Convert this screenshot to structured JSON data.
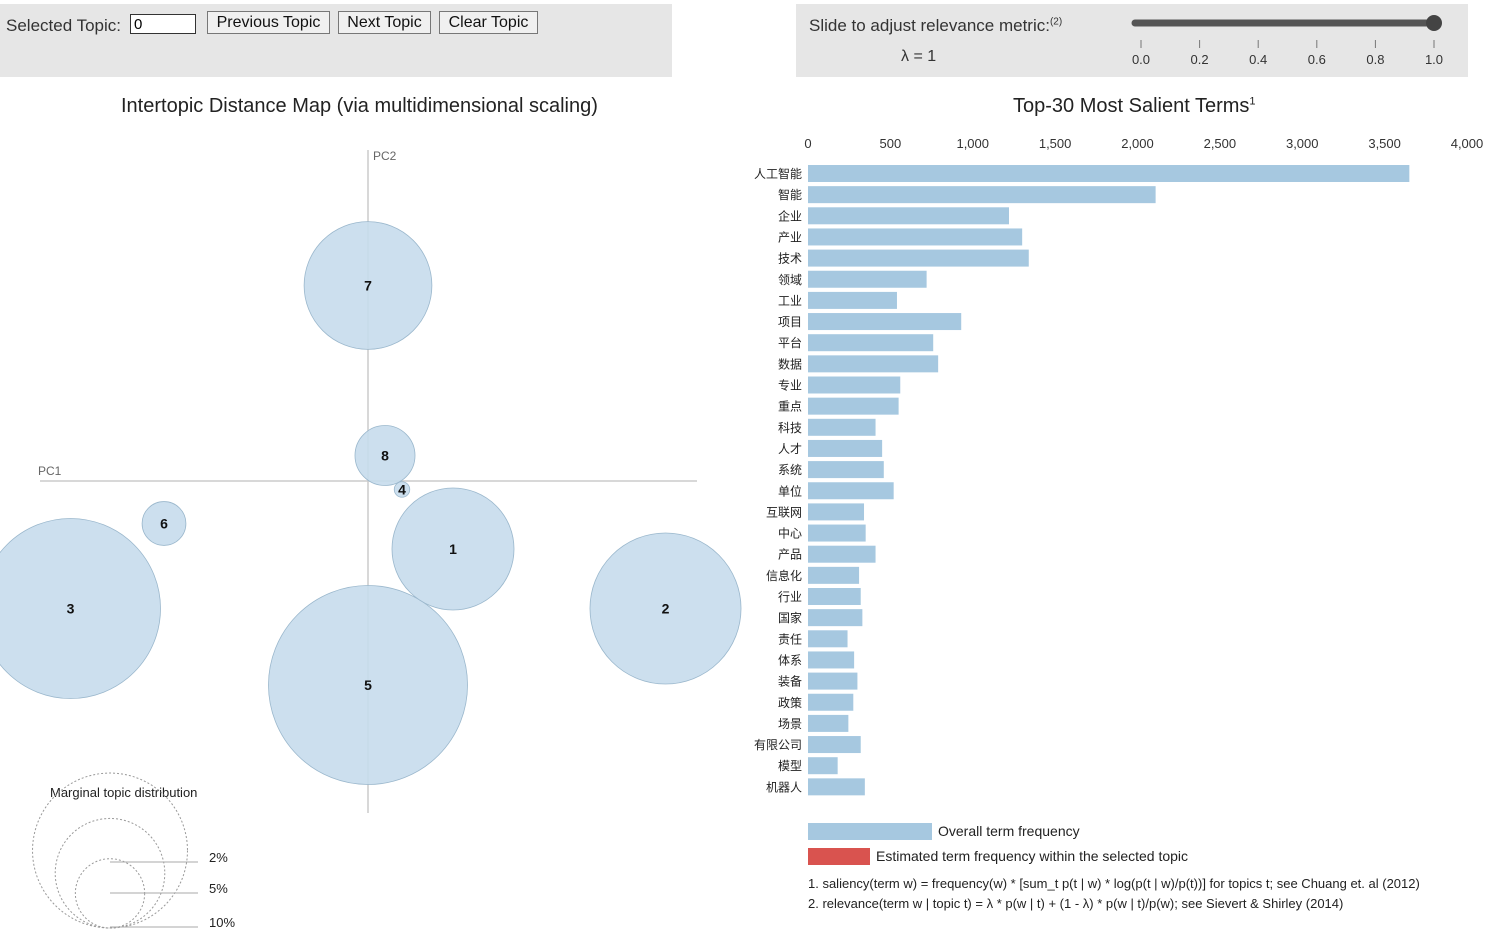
{
  "controls": {
    "selected_topic_label": "Selected Topic:",
    "selected_topic_value": "0",
    "previous_label": "Previous Topic",
    "next_label": "Next Topic",
    "clear_label": "Clear Topic"
  },
  "slider": {
    "label": "Slide to adjust relevance metric:",
    "label_sup": "(2)",
    "lambda_text": "λ = 1",
    "value": 1.0,
    "ticks": [
      "0.0",
      "0.2",
      "0.4",
      "0.6",
      "0.8",
      "1.0"
    ]
  },
  "mds": {
    "title": "Intertopic Distance Map (via multidimensional scaling)",
    "pc1_label": "PC1",
    "pc2_label": "PC2",
    "topics": [
      {
        "label": "1",
        "pc1": 0.1,
        "pc2": -0.08,
        "size": 6.2
      },
      {
        "label": "2",
        "pc1": 0.35,
        "pc2": -0.15,
        "size": 9.5
      },
      {
        "label": "3",
        "pc1": -0.35,
        "pc2": -0.15,
        "size": 13.5
      },
      {
        "label": "4",
        "pc1": 0.04,
        "pc2": -0.01,
        "size": 0.1
      },
      {
        "label": "5",
        "pc1": 0.0,
        "pc2": -0.24,
        "size": 16.5
      },
      {
        "label": "6",
        "pc1": -0.24,
        "pc2": -0.05,
        "size": 0.8
      },
      {
        "label": "7",
        "pc1": 0.0,
        "pc2": 0.23,
        "size": 6.8
      },
      {
        "label": "8",
        "pc1": 0.02,
        "pc2": 0.03,
        "size": 1.5
      }
    ],
    "marginal": {
      "title": "Marginal topic distribution",
      "labels": [
        "2%",
        "5%",
        "10%"
      ]
    }
  },
  "bar": {
    "title": "Top-30 Most Salient Terms",
    "title_sup": "1",
    "axis_ticks": [
      "0",
      "500",
      "1,000",
      "1,500",
      "2,000",
      "2,500",
      "3,000",
      "3,500",
      "4,000"
    ],
    "legend_overall": "Overall term frequency",
    "legend_topic": "Estimated term frequency within the selected topic",
    "footnote1": "1. saliency(term w) = frequency(w) * [sum_t p(t | w) * log(p(t | w)/p(t))] for topics t; see Chuang et. al (2012)",
    "footnote2": "2. relevance(term w | topic t) = λ * p(w | t) + (1 - λ) * p(w | t)/p(w); see Sievert & Shirley (2014)"
  },
  "chart_data": {
    "type": "bar",
    "title": "Top-30 Most Salient Terms",
    "xlabel": "",
    "ylabel": "",
    "xlim": [
      0,
      4000
    ],
    "categories": [
      "人工智能",
      "智能",
      "企业",
      "产业",
      "技术",
      "领域",
      "工业",
      "项目",
      "平台",
      "数据",
      "专业",
      "重点",
      "科技",
      "人才",
      "系统",
      "单位",
      "互联网",
      "中心",
      "产品",
      "信息化",
      "行业",
      "国家",
      "责任",
      "体系",
      "装备",
      "政策",
      "场景",
      "有限公司",
      "模型",
      "机器人"
    ],
    "series": [
      {
        "name": "Overall term frequency",
        "color": "#a6c8e0",
        "values": [
          3650,
          2110,
          1220,
          1300,
          1340,
          720,
          540,
          930,
          760,
          790,
          560,
          550,
          410,
          450,
          460,
          520,
          340,
          350,
          410,
          310,
          320,
          330,
          240,
          280,
          300,
          275,
          245,
          320,
          180,
          345
        ]
      }
    ],
    "legend": [
      "Overall term frequency",
      "Estimated term frequency within the selected topic"
    ]
  },
  "colors": {
    "circle_fill": "#c6dcec",
    "circle_stroke": "#9ab7cc",
    "bar_overall": "#a6c8e0",
    "bar_topic": "#d9534f",
    "panel_bg": "#e6e6e6"
  }
}
